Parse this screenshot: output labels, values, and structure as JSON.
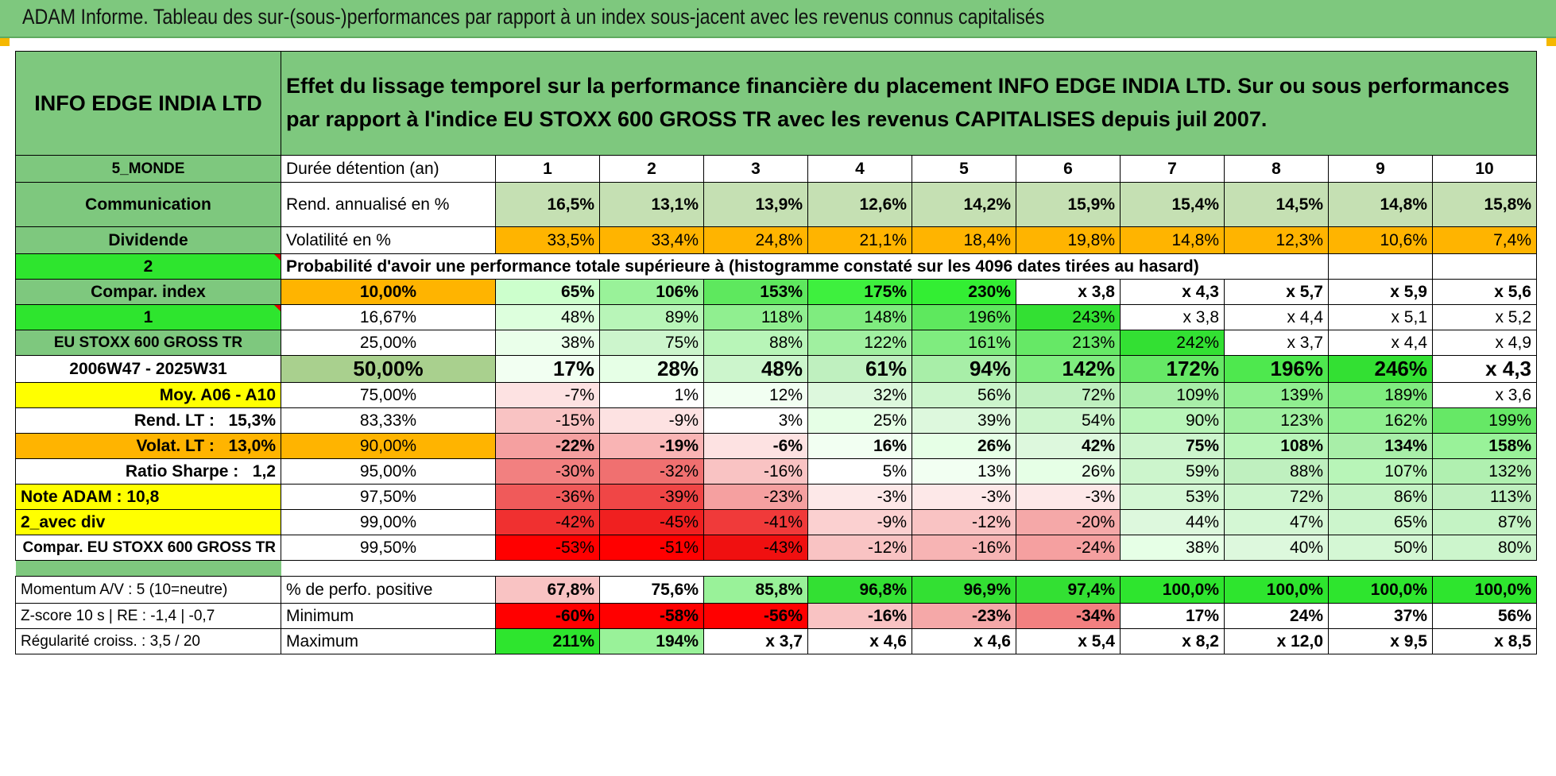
{
  "title": "ADAM Informe. Tableau des sur-(sous-)performances par rapport à un index sous-jacent avec les revenus connus capitalisés",
  "company": "INFO EDGE INDIA LTD",
  "header": "Effet du lissage temporel sur la performance financière du placement INFO EDGE INDIA LTD. Sur ou sous performances par rapport à l'indice EU STOXX 600 GROSS TR avec les revenus CAPITALISES depuis juil 2007.",
  "side": {
    "region": "5_MONDE",
    "sector": "Communication",
    "type": "Dividende",
    "num1": "2",
    "compar_index": "Compar. index",
    "num2": "1",
    "index_name": "EU STOXX 600 GROSS TR",
    "period": "2006W47 - 2025W31",
    "moy": "Moy. A06 - A10",
    "rend_label": "Rend. LT :",
    "rend_value": "15,3%",
    "volat_label": "Volat. LT :",
    "volat_value": "13,0%",
    "sharpe_label": "Ratio Sharpe :",
    "sharpe_value": "1,2",
    "note": "Note ADAM : 10,8",
    "avec_div": "2_avec div",
    "compar": "Compar. EU STOXX 600 GROSS TR",
    "momentum": "Momentum A/V : 5 (10=neutre)",
    "zscore": "Z-score 10 s | RE : -1,4 | -0,7",
    "regularite": "Régularité croiss. : 3,5 / 20"
  },
  "labels": {
    "duree": "Durée détention (an)",
    "rend": "Rend. annualisé en %",
    "volat": "Volatilité en %",
    "proba": "Probabilité d'avoir une performance totale supérieure à (histogramme constaté sur les 4096 dates tirées au hasard)",
    "positive": "% de perfo. positive",
    "minimum": "Minimum",
    "maximum": "Maximum"
  },
  "years": [
    "1",
    "2",
    "3",
    "4",
    "5",
    "6",
    "7",
    "8",
    "9",
    "10"
  ],
  "rend": [
    "16,5%",
    "13,1%",
    "13,9%",
    "12,6%",
    "14,2%",
    "15,9%",
    "15,4%",
    "14,5%",
    "14,8%",
    "15,8%"
  ],
  "volat": [
    "33,5%",
    "33,4%",
    "24,8%",
    "21,1%",
    "18,4%",
    "19,8%",
    "14,8%",
    "12,3%",
    "10,6%",
    "7,4%"
  ],
  "prob_rows": [
    {
      "p": "10,00%",
      "vals": [
        "65%",
        "106%",
        "153%",
        "175%",
        "230%",
        "x 3,8",
        "x 4,3",
        "x 5,7",
        "x 5,9",
        "x 5,6"
      ]
    },
    {
      "p": "16,67%",
      "vals": [
        "48%",
        "89%",
        "118%",
        "148%",
        "196%",
        "243%",
        "x 3,8",
        "x 4,4",
        "x 5,1",
        "x 5,2"
      ]
    },
    {
      "p": "25,00%",
      "vals": [
        "38%",
        "75%",
        "88%",
        "122%",
        "161%",
        "213%",
        "242%",
        "x 3,7",
        "x 4,4",
        "x 4,9"
      ]
    },
    {
      "p": "50,00%",
      "vals": [
        "17%",
        "28%",
        "48%",
        "61%",
        "94%",
        "142%",
        "172%",
        "196%",
        "246%",
        "x 4,3"
      ]
    },
    {
      "p": "75,00%",
      "vals": [
        "-7%",
        "1%",
        "12%",
        "32%",
        "56%",
        "72%",
        "109%",
        "139%",
        "189%",
        "x 3,6"
      ]
    },
    {
      "p": "83,33%",
      "vals": [
        "-15%",
        "-9%",
        "3%",
        "25%",
        "39%",
        "54%",
        "90%",
        "123%",
        "162%",
        "199%"
      ]
    },
    {
      "p": "90,00%",
      "vals": [
        "-22%",
        "-19%",
        "-6%",
        "16%",
        "26%",
        "42%",
        "75%",
        "108%",
        "134%",
        "158%"
      ]
    },
    {
      "p": "95,00%",
      "vals": [
        "-30%",
        "-32%",
        "-16%",
        "5%",
        "13%",
        "26%",
        "59%",
        "88%",
        "107%",
        "132%"
      ]
    },
    {
      "p": "97,50%",
      "vals": [
        "-36%",
        "-39%",
        "-23%",
        "-3%",
        "-3%",
        "-3%",
        "53%",
        "72%",
        "86%",
        "113%"
      ]
    },
    {
      "p": "99,00%",
      "vals": [
        "-42%",
        "-45%",
        "-41%",
        "-9%",
        "-12%",
        "-20%",
        "44%",
        "47%",
        "65%",
        "87%"
      ]
    },
    {
      "p": "99,50%",
      "vals": [
        "-53%",
        "-51%",
        "-43%",
        "-12%",
        "-16%",
        "-24%",
        "38%",
        "40%",
        "50%",
        "80%"
      ]
    }
  ],
  "positive": [
    "67,8%",
    "75,6%",
    "85,8%",
    "96,8%",
    "96,9%",
    "97,4%",
    "100,0%",
    "100,0%",
    "100,0%",
    "100,0%"
  ],
  "minimum": [
    "-60%",
    "-58%",
    "-56%",
    "-16%",
    "-23%",
    "-34%",
    "17%",
    "24%",
    "37%",
    "56%"
  ],
  "maximum": [
    "211%",
    "194%",
    "x 3,7",
    "x 4,6",
    "x 4,6",
    "x 5,4",
    "x 8,2",
    "x 12,0",
    "x 9,5",
    "x 8,5"
  ],
  "colors": {
    "title_green": "#7ec87e",
    "bright_green": "#2ee52e",
    "yellow": "#ffff00",
    "orange": "#ffb400",
    "red": "#ff0000"
  }
}
